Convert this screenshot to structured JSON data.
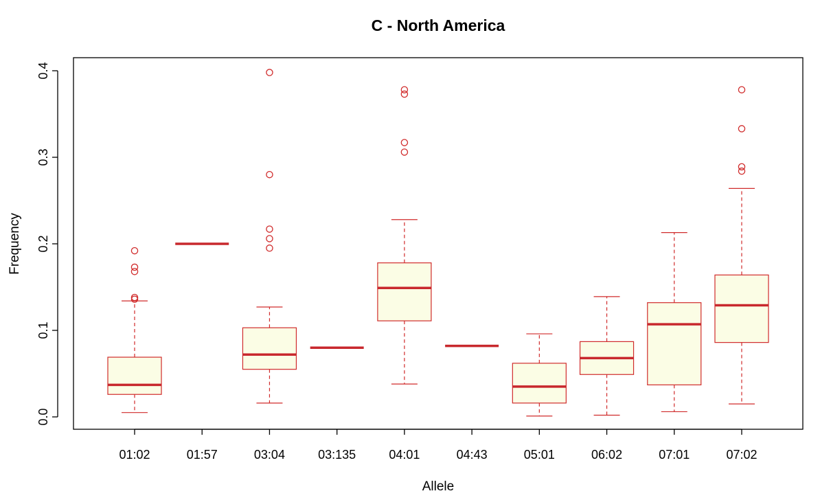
{
  "chart_data": {
    "type": "boxplot",
    "title": "C - North America",
    "xlabel": "Allele",
    "ylabel": "Frequency",
    "ylim": [
      -0.015,
      0.415
    ],
    "yticks": [
      "0.0",
      "0.1",
      "0.2",
      "0.3",
      "0.4"
    ],
    "grid": false,
    "colors": {
      "border": "#d02a2a",
      "fill": "#fbfde5",
      "median": "#c8282d"
    },
    "categories": [
      "01:02",
      "01:57",
      "03:04",
      "03:135",
      "04:01",
      "04:43",
      "05:01",
      "06:02",
      "07:01",
      "07:02"
    ],
    "boxes": [
      {
        "label": "01:02",
        "min": 0.005,
        "q1": 0.026,
        "median": 0.037,
        "q3": 0.069,
        "max": 0.134,
        "outliers": [
          0.192,
          0.173,
          0.168,
          0.138,
          0.136
        ]
      },
      {
        "label": "01:57",
        "min": 0.2,
        "q1": 0.2,
        "median": 0.2,
        "q3": 0.2,
        "max": 0.2,
        "outliers": []
      },
      {
        "label": "03:04",
        "min": 0.016,
        "q1": 0.055,
        "median": 0.072,
        "q3": 0.103,
        "max": 0.127,
        "outliers": [
          0.398,
          0.28,
          0.217,
          0.206,
          0.195
        ]
      },
      {
        "label": "03:135",
        "min": 0.08,
        "q1": 0.08,
        "median": 0.08,
        "q3": 0.08,
        "max": 0.08,
        "outliers": []
      },
      {
        "label": "04:01",
        "min": 0.038,
        "q1": 0.111,
        "median": 0.149,
        "q3": 0.178,
        "max": 0.228,
        "outliers": [
          0.378,
          0.373,
          0.317,
          0.306
        ]
      },
      {
        "label": "04:43",
        "min": 0.082,
        "q1": 0.082,
        "median": 0.082,
        "q3": 0.082,
        "max": 0.082,
        "outliers": []
      },
      {
        "label": "05:01",
        "min": 0.001,
        "q1": 0.016,
        "median": 0.035,
        "q3": 0.062,
        "max": 0.096,
        "outliers": []
      },
      {
        "label": "06:02",
        "min": 0.002,
        "q1": 0.049,
        "median": 0.068,
        "q3": 0.087,
        "max": 0.139,
        "outliers": []
      },
      {
        "label": "07:01",
        "min": 0.006,
        "q1": 0.037,
        "median": 0.107,
        "q3": 0.132,
        "max": 0.213,
        "outliers": []
      },
      {
        "label": "07:02",
        "min": 0.015,
        "q1": 0.086,
        "median": 0.129,
        "q3": 0.164,
        "max": 0.264,
        "outliers": [
          0.378,
          0.333,
          0.289,
          0.284
        ]
      }
    ]
  }
}
